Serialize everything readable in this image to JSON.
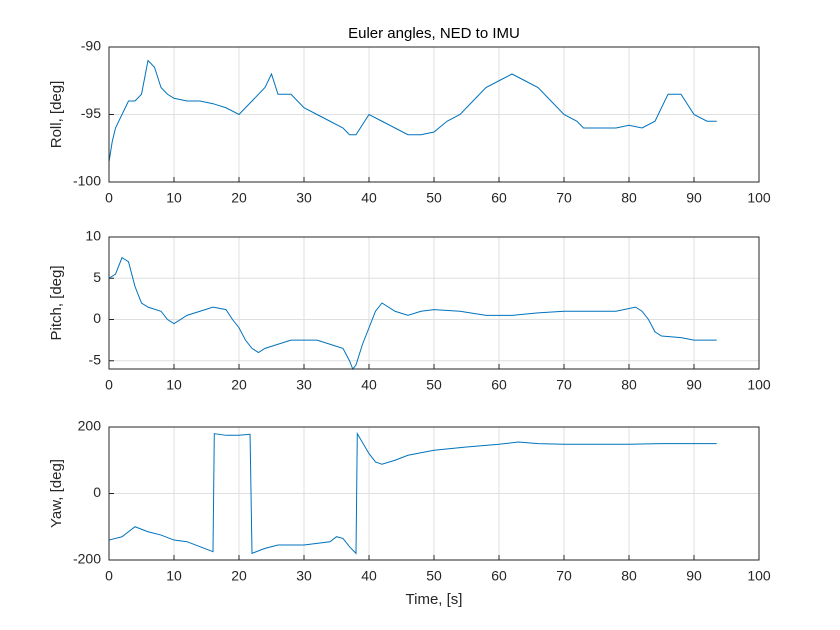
{
  "chart_data": [
    {
      "type": "line",
      "title": "Euler angles, NED to IMU",
      "y_label": "Roll, [deg]",
      "x": [
        0,
        0.5,
        1,
        2,
        3,
        4,
        5,
        6,
        7,
        8,
        9,
        10,
        12,
        14,
        16,
        18,
        20,
        22,
        24,
        25,
        26,
        28,
        30,
        32,
        34,
        36,
        37,
        38,
        40,
        42,
        44,
        46,
        48,
        50,
        52,
        54,
        56,
        58,
        60,
        62,
        64,
        66,
        68,
        70,
        72,
        73,
        75,
        78,
        80,
        82,
        84,
        86,
        88,
        90,
        92,
        93.5
      ],
      "series": [
        {
          "color": "#0072bd",
          "values": [
            -98.5,
            -97,
            -96,
            -95,
            -94,
            -94,
            -93.5,
            -91,
            -91.5,
            -93,
            -93.5,
            -93.8,
            -94,
            -94,
            -94.2,
            -94.5,
            -95,
            -94,
            -93,
            -92,
            -93.5,
            -93.5,
            -94.5,
            -95,
            -95.5,
            -96,
            -96.5,
            -96.5,
            -95,
            -95.5,
            -96,
            -96.5,
            -96.5,
            -96.3,
            -95.5,
            -95,
            -94,
            -93,
            -92.5,
            -92,
            -92.5,
            -93,
            -94,
            -95,
            -95.5,
            -96,
            -96,
            -96,
            -95.8,
            -96,
            -95.5,
            -93.5,
            -93.5,
            -95,
            -95.5,
            -95.5
          ]
        }
      ],
      "xlim": [
        0,
        100
      ],
      "xticks": [
        0,
        10,
        20,
        30,
        40,
        50,
        60,
        70,
        80,
        90,
        100
      ],
      "ylim": [
        -100,
        -90
      ],
      "yticks": [
        -100,
        -95,
        -90
      ],
      "grid": true
    },
    {
      "type": "line",
      "y_label": "Pitch, [deg]",
      "x": [
        0,
        1,
        2,
        3,
        4,
        5,
        6,
        8,
        9,
        10,
        12,
        14,
        16,
        18,
        19,
        20,
        21,
        22,
        23,
        24,
        26,
        28,
        30,
        32,
        34,
        36,
        37,
        37.5,
        38,
        39,
        40,
        41,
        42,
        44,
        46,
        48,
        50,
        54,
        58,
        62,
        66,
        70,
        74,
        78,
        81,
        82,
        83,
        84,
        85,
        88,
        90,
        93.5
      ],
      "series": [
        {
          "color": "#0072bd",
          "values": [
            5,
            5.5,
            7.5,
            7,
            4,
            2,
            1.5,
            1,
            0,
            -0.5,
            0.5,
            1,
            1.5,
            1.2,
            0,
            -1,
            -2.5,
            -3.5,
            -4,
            -3.5,
            -3,
            -2.5,
            -2.5,
            -2.5,
            -3,
            -3.5,
            -5,
            -6,
            -5.5,
            -3,
            -1,
            1,
            2,
            1,
            0.5,
            1,
            1.2,
            1,
            0.5,
            0.5,
            0.8,
            1,
            1,
            1,
            1.5,
            1,
            0,
            -1.5,
            -2,
            -2.2,
            -2.5,
            -2.5
          ]
        }
      ],
      "xlim": [
        0,
        100
      ],
      "xticks": [
        0,
        10,
        20,
        30,
        40,
        50,
        60,
        70,
        80,
        90,
        100
      ],
      "ylim": [
        -6,
        10
      ],
      "yticks": [
        -5,
        0,
        5,
        10
      ],
      "grid": true
    },
    {
      "type": "line",
      "y_label": "Yaw, [deg]",
      "x_label": "Time, [s]",
      "x": [
        0,
        2,
        4,
        6,
        8,
        10,
        12,
        14,
        16,
        16.2,
        18,
        20,
        21.7,
        22,
        24,
        26,
        30,
        34,
        35,
        36,
        37,
        38,
        38.2,
        40,
        41,
        42,
        44,
        46,
        50,
        55,
        60,
        63,
        66,
        70,
        80,
        85,
        90,
        93.5
      ],
      "series": [
        {
          "color": "#0072bd",
          "values": [
            -140,
            -130,
            -100,
            -115,
            -125,
            -140,
            -145,
            -160,
            -175,
            180,
            175,
            175,
            178,
            -180,
            -165,
            -155,
            -155,
            -145,
            -130,
            -135,
            -160,
            -180,
            180,
            120,
            95,
            88,
            100,
            115,
            130,
            140,
            148,
            155,
            150,
            148,
            148,
            150,
            150,
            150
          ]
        }
      ],
      "xlim": [
        0,
        100
      ],
      "xticks": [
        0,
        10,
        20,
        30,
        40,
        50,
        60,
        70,
        80,
        90,
        100
      ],
      "ylim": [
        -200,
        200
      ],
      "yticks": [
        -200,
        0,
        200
      ],
      "grid": true
    }
  ]
}
